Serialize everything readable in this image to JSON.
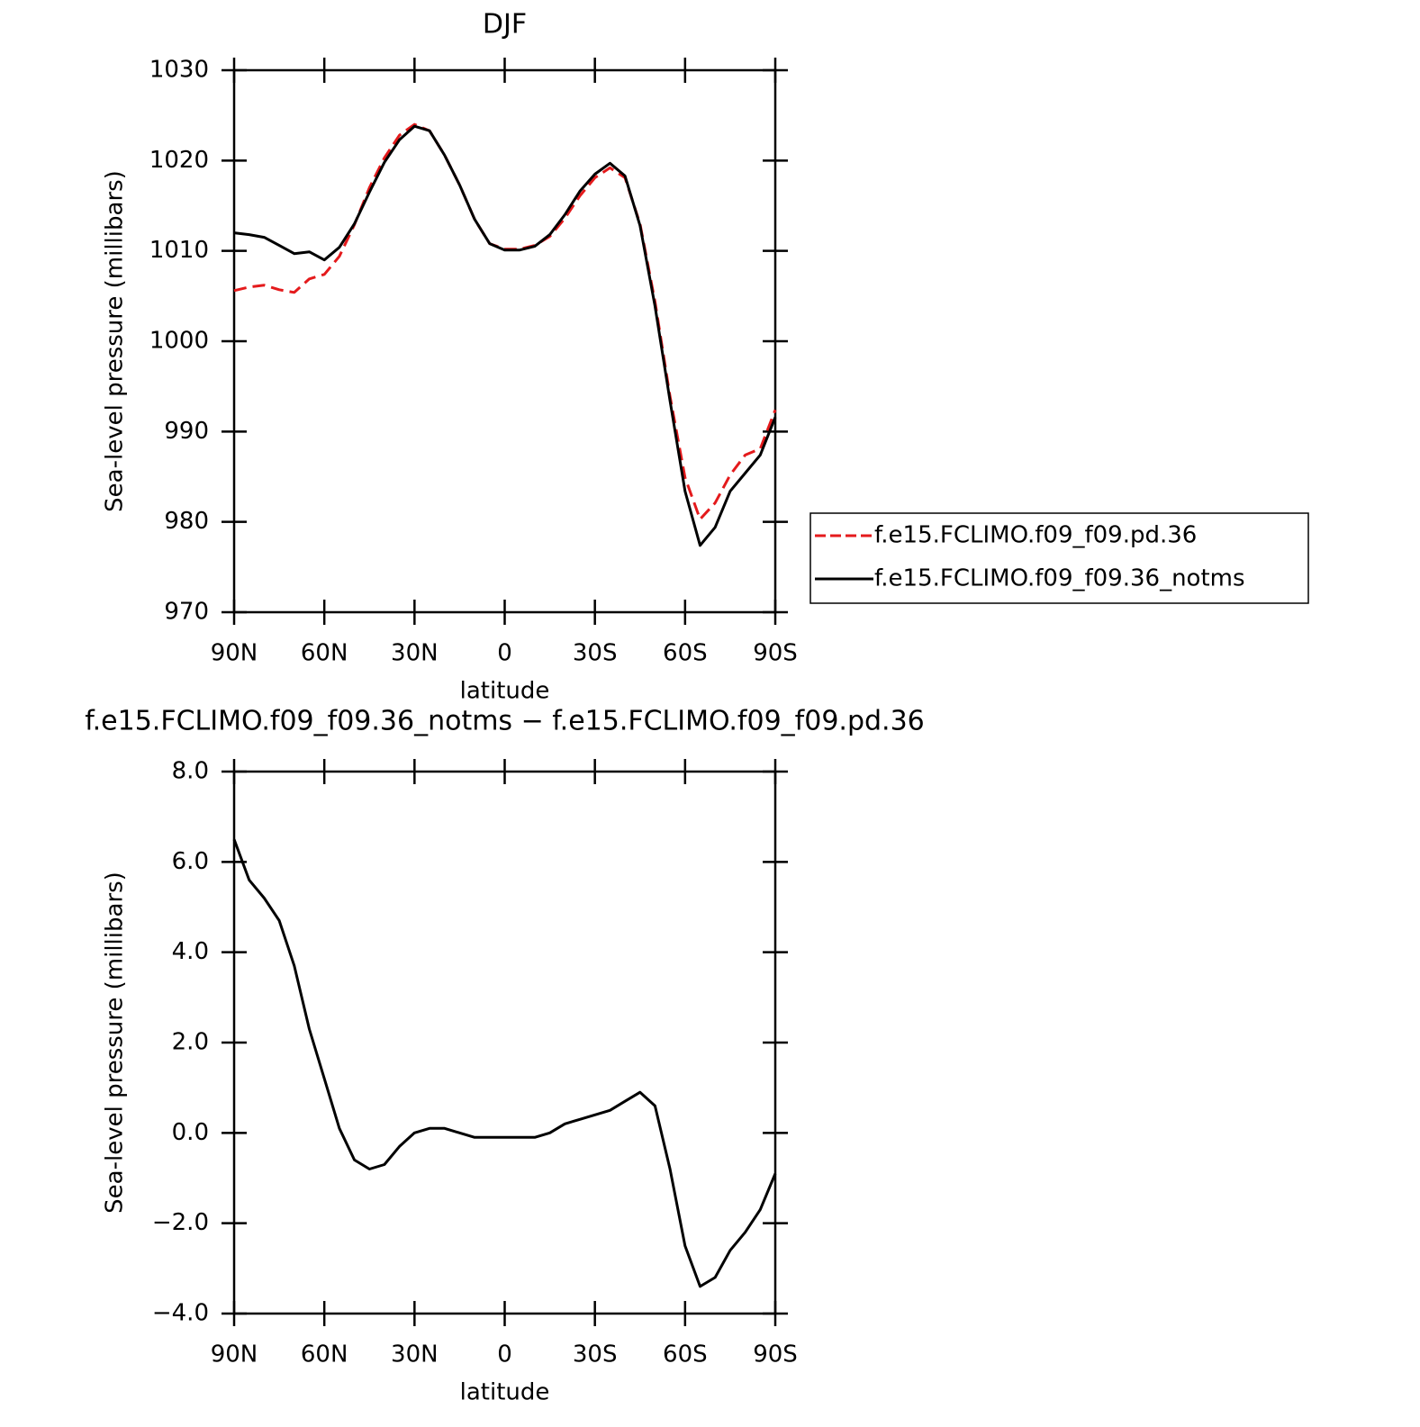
{
  "chart_data": [
    {
      "type": "line",
      "title": "DJF",
      "xlabel": "latitude",
      "ylabel": "Sea-level pressure (millibars)",
      "x": [
        90,
        85,
        80,
        75,
        70,
        65,
        60,
        55,
        50,
        45,
        40,
        35,
        30,
        25,
        20,
        15,
        10,
        5,
        0,
        -5,
        -10,
        -15,
        -20,
        -25,
        -30,
        -35,
        -40,
        -45,
        -50,
        -55,
        -60,
        -65,
        -70,
        -75,
        -80,
        -85,
        -90
      ],
      "series": [
        {
          "name": "f.e15.FCLIMO.f09_f09.pd.36",
          "color": "#e41a1c",
          "dash": true,
          "values": [
            1005.6,
            1006.0,
            1006.2,
            1005.7,
            1005.4,
            1006.9,
            1007.4,
            1009.4,
            1012.9,
            1017.0,
            1020.3,
            1022.8,
            1024.0,
            1023.3,
            1020.6,
            1017.3,
            1013.5,
            1010.8,
            1010.2,
            1010.2,
            1010.6,
            1011.6,
            1013.6,
            1016.1,
            1018.1,
            1019.2,
            1018.1,
            1013.0,
            1004.4,
            993.9,
            984.9,
            980.3,
            982.1,
            985.2,
            987.4,
            988.1,
            992.4
          ]
        },
        {
          "name": "f.e15.FCLIMO.f09_f09.36_notms",
          "color": "#000000",
          "dash": false,
          "values": [
            1012.0,
            1011.8,
            1011.5,
            1010.6,
            1009.7,
            1009.9,
            1009.0,
            1010.4,
            1013.0,
            1016.5,
            1019.8,
            1022.3,
            1023.8,
            1023.3,
            1020.6,
            1017.3,
            1013.5,
            1010.8,
            1010.1,
            1010.1,
            1010.5,
            1011.8,
            1014.0,
            1016.6,
            1018.5,
            1019.7,
            1018.3,
            1012.8,
            1003.9,
            993.4,
            983.4,
            977.4,
            979.4,
            983.4,
            985.4,
            987.4,
            991.6
          ]
        }
      ],
      "xlim": [
        90,
        -90
      ],
      "xticks": [
        {
          "value": 90,
          "label": "90N"
        },
        {
          "value": 60,
          "label": "60N"
        },
        {
          "value": 30,
          "label": "30N"
        },
        0,
        {
          "value": -30,
          "label": "30S"
        },
        {
          "value": -60,
          "label": "60S"
        },
        {
          "value": -90,
          "label": "90S"
        }
      ],
      "ylim": [
        970,
        1030
      ],
      "yticks": [
        970,
        980,
        990,
        1000,
        1010,
        1020,
        1030
      ],
      "legend": "right"
    },
    {
      "type": "line",
      "title": "f.e15.FCLIMO.f09_f09.36_notms − f.e15.FCLIMO.f09_f09.pd.36",
      "xlabel": "latitude",
      "ylabel": "Sea-level pressure (millibars)",
      "x": [
        90,
        85,
        80,
        75,
        70,
        65,
        60,
        55,
        50,
        45,
        40,
        35,
        30,
        25,
        20,
        15,
        10,
        5,
        0,
        -5,
        -10,
        -15,
        -20,
        -25,
        -30,
        -35,
        -40,
        -45,
        -50,
        -55,
        -60,
        -65,
        -70,
        -75,
        -80,
        -85,
        -90
      ],
      "values": [
        6.5,
        5.6,
        5.2,
        4.7,
        3.7,
        2.3,
        1.2,
        0.1,
        -0.6,
        -0.8,
        -0.7,
        -0.3,
        0.0,
        0.1,
        0.1,
        0.0,
        -0.1,
        -0.1,
        -0.1,
        -0.1,
        -0.1,
        0.0,
        0.2,
        0.3,
        0.4,
        0.5,
        0.7,
        0.9,
        0.6,
        -0.8,
        -2.5,
        -3.4,
        -3.2,
        -2.6,
        -2.2,
        -1.7,
        -0.9
      ],
      "color": "#000000",
      "xlim": [
        90,
        -90
      ],
      "xticks": [
        {
          "value": 90,
          "label": "90N"
        },
        {
          "value": 60,
          "label": "60N"
        },
        {
          "value": 30,
          "label": "30N"
        },
        0,
        {
          "value": -30,
          "label": "30S"
        },
        {
          "value": -60,
          "label": "60S"
        },
        {
          "value": -90,
          "label": "90S"
        }
      ],
      "ylim": [
        -4,
        8
      ],
      "yticks": [
        {
          "value": -4,
          "label": "−4.0"
        },
        {
          "value": -2,
          "label": "−2.0"
        },
        {
          "value": 0,
          "label": "0.0"
        },
        {
          "value": 2,
          "label": "2.0"
        },
        {
          "value": 4,
          "label": "4.0"
        },
        {
          "value": 6,
          "label": "6.0"
        },
        {
          "value": 8,
          "label": "8.0"
        }
      ]
    }
  ]
}
